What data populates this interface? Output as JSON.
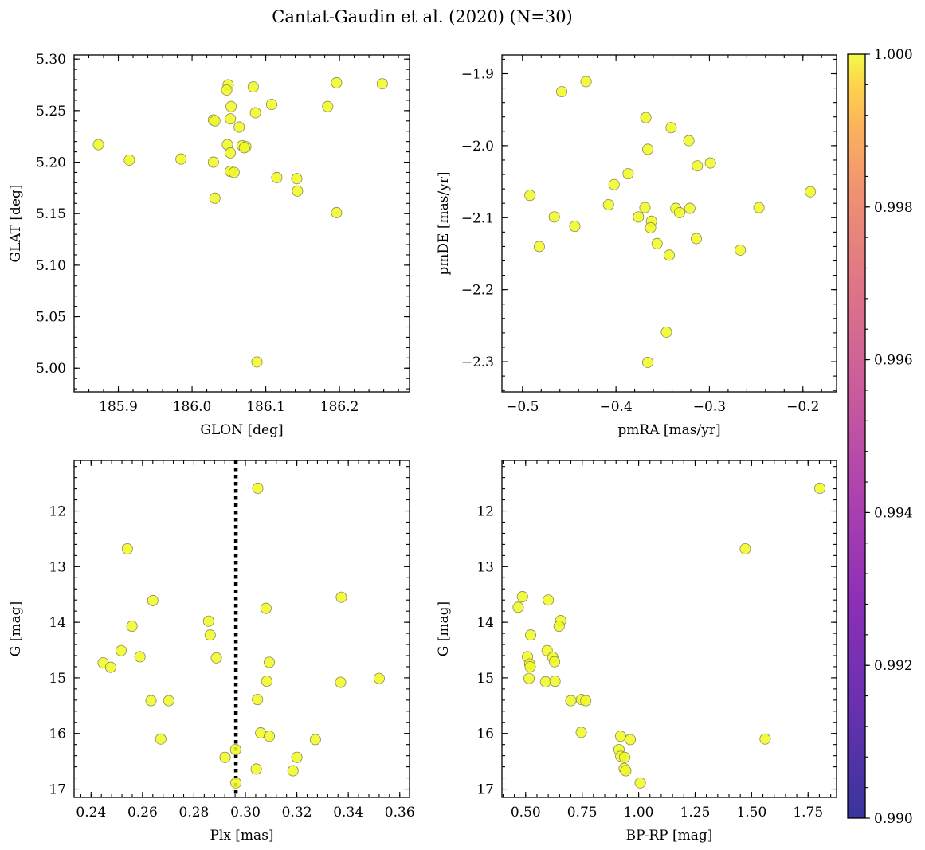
{
  "title": "Cantat-Gaudin et al. (2020) (N=30)",
  "point_color": "#f0f921",
  "colorbar": {
    "min": 0.99,
    "max": 1.0,
    "tick_labels": [
      "0.990",
      "0.992",
      "0.994",
      "0.996",
      "0.998",
      "1.000"
    ],
    "tick_values": [
      0.99,
      0.992,
      0.994,
      0.996,
      0.998,
      1.0
    ],
    "colormap": "plasma"
  },
  "chart_data": [
    {
      "type": "scatter",
      "xlabel": "GLON [deg]",
      "ylabel": "GLAT [deg]",
      "xlim": [
        185.84,
        186.295
      ],
      "ylim": [
        4.977,
        5.304
      ],
      "y_inverted": false,
      "xticks": [
        185.9,
        186.0,
        186.1,
        186.2
      ],
      "xtick_labels": [
        "185.9",
        "186.0",
        "186.1",
        "186.2"
      ],
      "yticks": [
        5.0,
        5.05,
        5.1,
        5.15,
        5.2,
        5.25,
        5.3
      ],
      "ytick_labels": [
        "5.00",
        "5.05",
        "5.10",
        "5.15",
        "5.20",
        "5.25",
        "5.30"
      ],
      "points": [
        [
          185.873,
          5.217
        ],
        [
          185.915,
          5.202
        ],
        [
          185.985,
          5.203
        ],
        [
          186.029,
          5.241
        ],
        [
          186.031,
          5.24
        ],
        [
          186.029,
          5.2
        ],
        [
          186.031,
          5.165
        ],
        [
          186.049,
          5.275
        ],
        [
          186.047,
          5.27
        ],
        [
          186.053,
          5.254
        ],
        [
          186.052,
          5.242
        ],
        [
          186.048,
          5.217
        ],
        [
          186.052,
          5.209
        ],
        [
          186.052,
          5.191
        ],
        [
          186.057,
          5.19
        ],
        [
          186.064,
          5.234
        ],
        [
          186.068,
          5.216
        ],
        [
          186.073,
          5.215
        ],
        [
          186.083,
          5.273
        ],
        [
          186.086,
          5.248
        ],
        [
          186.088,
          5.006
        ],
        [
          186.108,
          5.256
        ],
        [
          186.115,
          5.185
        ],
        [
          186.142,
          5.184
        ],
        [
          186.143,
          5.172
        ],
        [
          186.184,
          5.254
        ],
        [
          186.196,
          5.277
        ],
        [
          186.196,
          5.151
        ],
        [
          186.258,
          5.276
        ],
        [
          186.071,
          5.214
        ]
      ]
    },
    {
      "type": "scatter",
      "xlabel": "pmRA [mas/yr]",
      "ylabel": "pmDE [mas/yr]",
      "xlim": [
        -0.522,
        -0.164
      ],
      "ylim": [
        -2.342,
        -1.874
      ],
      "y_inverted": false,
      "xticks": [
        -0.5,
        -0.4,
        -0.3,
        -0.2
      ],
      "xtick_labels": [
        "−0.5",
        "−0.4",
        "−0.3",
        "−0.2"
      ],
      "yticks": [
        -2.3,
        -2.2,
        -2.1,
        -2.0,
        -1.9
      ],
      "ytick_labels": [
        "−2.3",
        "−2.2",
        "−2.1",
        "−2.0",
        "−1.9"
      ],
      "points": [
        [
          -0.458,
          -1.925
        ],
        [
          -0.432,
          -1.911
        ],
        [
          -0.492,
          -2.069
        ],
        [
          -0.466,
          -2.099
        ],
        [
          -0.482,
          -2.14
        ],
        [
          -0.444,
          -2.112
        ],
        [
          -0.408,
          -2.082
        ],
        [
          -0.402,
          -2.054
        ],
        [
          -0.387,
          -2.039
        ],
        [
          -0.368,
          -1.961
        ],
        [
          -0.366,
          -2.005
        ],
        [
          -0.376,
          -2.099
        ],
        [
          -0.369,
          -2.086
        ],
        [
          -0.362,
          -2.105
        ],
        [
          -0.363,
          -2.114
        ],
        [
          -0.356,
          -2.136
        ],
        [
          -0.343,
          -2.152
        ],
        [
          -0.346,
          -2.259
        ],
        [
          -0.366,
          -2.301
        ],
        [
          -0.341,
          -1.975
        ],
        [
          -0.336,
          -2.087
        ],
        [
          -0.332,
          -2.093
        ],
        [
          -0.322,
          -1.993
        ],
        [
          -0.321,
          -2.087
        ],
        [
          -0.314,
          -2.129
        ],
        [
          -0.313,
          -2.028
        ],
        [
          -0.299,
          -2.024
        ],
        [
          -0.267,
          -2.145
        ],
        [
          -0.247,
          -2.086
        ],
        [
          -0.192,
          -2.064
        ]
      ]
    },
    {
      "type": "scatter",
      "xlabel": "Plx [mas]",
      "ylabel": "G [mag]",
      "xlim": [
        0.2334,
        0.3638
      ],
      "ylim": [
        17.15,
        11.09
      ],
      "y_inverted": true,
      "xticks": [
        0.24,
        0.26,
        0.28,
        0.3,
        0.32,
        0.34,
        0.36
      ],
      "xtick_labels": [
        "0.24",
        "0.26",
        "0.28",
        "0.30",
        "0.32",
        "0.34",
        "0.36"
      ],
      "yticks": [
        12,
        13,
        14,
        15,
        16,
        17
      ],
      "ytick_labels": [
        "12",
        "13",
        "14",
        "15",
        "16",
        "17"
      ],
      "vline": 0.2963,
      "points": [
        [
          0.3048,
          11.59
        ],
        [
          0.2541,
          12.68
        ],
        [
          0.264,
          13.61
        ],
        [
          0.3373,
          13.55
        ],
        [
          0.2559,
          14.07
        ],
        [
          0.308,
          13.75
        ],
        [
          0.2857,
          13.98
        ],
        [
          0.2863,
          14.23
        ],
        [
          0.2517,
          14.51
        ],
        [
          0.259,
          14.62
        ],
        [
          0.2887,
          14.64
        ],
        [
          0.2447,
          14.73
        ],
        [
          0.2476,
          14.81
        ],
        [
          0.3093,
          14.72
        ],
        [
          0.3083,
          15.06
        ],
        [
          0.337,
          15.08
        ],
        [
          0.352,
          15.01
        ],
        [
          0.2633,
          15.41
        ],
        [
          0.2702,
          15.41
        ],
        [
          0.3047,
          15.39
        ],
        [
          0.2671,
          16.1
        ],
        [
          0.3059,
          15.99
        ],
        [
          0.3093,
          16.05
        ],
        [
          0.3272,
          16.11
        ],
        [
          0.2962,
          16.29
        ],
        [
          0.2921,
          16.43
        ],
        [
          0.32,
          16.43
        ],
        [
          0.3042,
          16.64
        ],
        [
          0.3185,
          16.67
        ],
        [
          0.2963,
          16.89
        ]
      ]
    },
    {
      "type": "scatter",
      "xlabel": "BP-RP [mag]",
      "ylabel": "G [mag]",
      "xlim": [
        0.395,
        1.876
      ],
      "ylim": [
        17.15,
        11.09
      ],
      "y_inverted": true,
      "xticks": [
        0.5,
        0.75,
        1.0,
        1.25,
        1.5,
        1.75
      ],
      "xtick_labels": [
        "0.50",
        "0.75",
        "1.00",
        "1.25",
        "1.50",
        "1.75"
      ],
      "yticks": [
        12,
        13,
        14,
        15,
        16,
        17
      ],
      "ytick_labels": [
        "12",
        "13",
        "14",
        "15",
        "16",
        "17"
      ],
      "points": [
        [
          1.802,
          11.59
        ],
        [
          1.472,
          12.68
        ],
        [
          1.56,
          16.1
        ],
        [
          0.486,
          13.54
        ],
        [
          0.467,
          13.73
        ],
        [
          0.6,
          13.6
        ],
        [
          0.655,
          13.97
        ],
        [
          0.648,
          14.07
        ],
        [
          0.522,
          14.23
        ],
        [
          0.595,
          14.51
        ],
        [
          0.508,
          14.62
        ],
        [
          0.62,
          14.63
        ],
        [
          0.628,
          14.71
        ],
        [
          0.518,
          14.75
        ],
        [
          0.52,
          14.8
        ],
        [
          0.515,
          15.01
        ],
        [
          0.588,
          15.07
        ],
        [
          0.63,
          15.06
        ],
        [
          0.7,
          15.41
        ],
        [
          0.747,
          15.39
        ],
        [
          0.766,
          15.41
        ],
        [
          0.746,
          15.98
        ],
        [
          0.92,
          16.05
        ],
        [
          0.963,
          16.11
        ],
        [
          0.913,
          16.29
        ],
        [
          0.921,
          16.41
        ],
        [
          0.938,
          16.43
        ],
        [
          0.936,
          16.63
        ],
        [
          0.943,
          16.67
        ],
        [
          1.007,
          16.89
        ]
      ]
    }
  ]
}
